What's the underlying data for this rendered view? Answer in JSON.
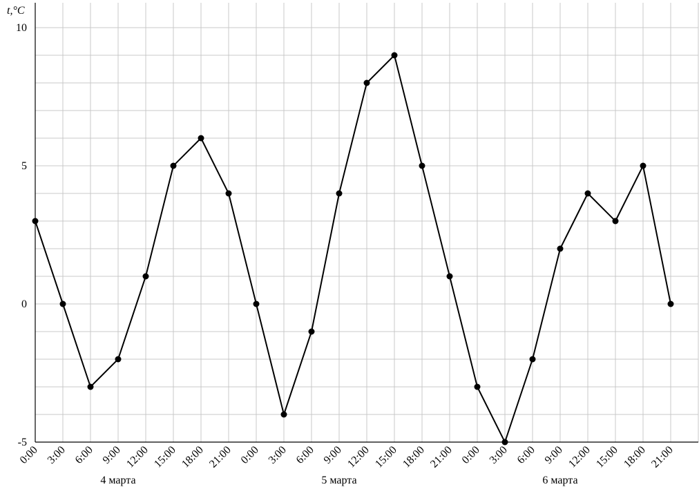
{
  "chart_data": {
    "type": "line",
    "y_label": "t,°C",
    "categories": [
      "0:00",
      "3:00",
      "6:00",
      "9:00",
      "12:00",
      "15:00",
      "18:00",
      "21:00",
      "0:00",
      "3:00",
      "6:00",
      "9:00",
      "12:00",
      "15:00",
      "18:00",
      "21:00",
      "0:00",
      "3:00",
      "6:00",
      "9:00",
      "12:00",
      "15:00",
      "18:00",
      "21:00"
    ],
    "days": [
      "4 марта",
      "5 марта",
      "6 марта"
    ],
    "values": [
      3,
      0,
      -3,
      -2,
      1,
      5,
      6,
      4,
      0,
      -4,
      -1,
      4,
      8,
      9,
      5,
      1,
      -3,
      -5,
      -2,
      2,
      4,
      3,
      5,
      0
    ],
    "color": "#000000",
    "ylim": [
      -5,
      10.9
    ],
    "yticks": [
      -5,
      0,
      5,
      10
    ],
    "minor_yticks": [
      -4,
      -3,
      -2,
      -1,
      1,
      2,
      3,
      4,
      6,
      7,
      8,
      9,
      10
    ],
    "grid": true
  }
}
